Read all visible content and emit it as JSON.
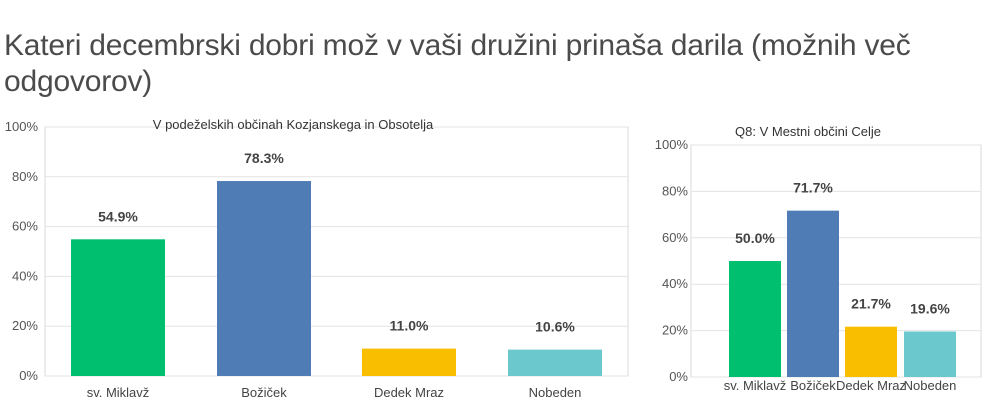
{
  "page": {
    "title": "Kateri decembrski dobri mož v vaši družini prinaša darila (možnih več odgovorov)"
  },
  "chart_data": [
    {
      "type": "bar",
      "title": "V podeželskih občinah Kozjanskega in Obsotelja",
      "categories": [
        "sv. Miklavž",
        "Božiček",
        "Dedek Mraz",
        "Nobeden"
      ],
      "values": [
        54.9,
        78.3,
        11.0,
        10.6
      ],
      "value_labels": [
        "54.9%",
        "78.3%",
        "11.0%",
        "10.6%"
      ],
      "colors": [
        "#00bf6f",
        "#507cb6",
        "#f9be00",
        "#6bc8cd"
      ],
      "ylim": [
        0,
        100
      ],
      "yticks": [
        0,
        20,
        40,
        60,
        80,
        100
      ],
      "ytick_labels": [
        "0%",
        "20%",
        "40%",
        "60%",
        "80%",
        "100%"
      ],
      "xlabel": "",
      "ylabel": "",
      "grid": true
    },
    {
      "type": "bar",
      "title": "Q8: V Mestni občini Celje",
      "categories": [
        "sv. Miklavž",
        "Božiček",
        "Dedek Mraz",
        "Nobeden"
      ],
      "values": [
        50.0,
        71.7,
        21.7,
        19.6
      ],
      "value_labels": [
        "50.0%",
        "71.7%",
        "21.7%",
        "19.6%"
      ],
      "colors": [
        "#00bf6f",
        "#507cb6",
        "#f9be00",
        "#6bc8cd"
      ],
      "ylim": [
        0,
        100
      ],
      "yticks": [
        0,
        20,
        40,
        60,
        80,
        100
      ],
      "ytick_labels": [
        "0%",
        "20%",
        "40%",
        "60%",
        "80%",
        "100%"
      ],
      "xlabel": "",
      "ylabel": "",
      "grid": true
    }
  ]
}
